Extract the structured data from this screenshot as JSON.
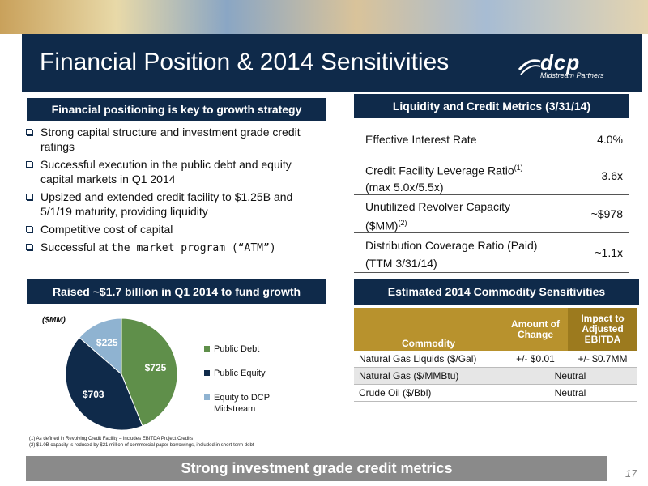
{
  "slide": {
    "title": "Financial Position & 2014 Sensitivities",
    "logo": {
      "mark": "dcp",
      "sub": "Midstream Partners"
    },
    "page_number": "17",
    "banner": "Strong investment grade credit metrics"
  },
  "left_top": {
    "header": "Financial positioning is key to growth strategy",
    "bullets": [
      "Strong capital structure and investment grade credit ratings",
      "Successful execution in the public debt and equity capital markets in Q1 2014",
      "Upsized and extended credit facility to $1.25B and 5/1/19 maturity, providing liquidity",
      "Competitive cost of capital"
    ],
    "bullet_last_prefix": "Successful at ",
    "bullet_last_rest": "the market program (“ATM”)"
  },
  "right_top": {
    "header": "Liquidity and Credit Metrics (3/31/14)",
    "rows": [
      {
        "label": "Effective Interest Rate",
        "value": "4.0%"
      },
      {
        "label_a": "Credit Facility Leverage Ratio",
        "sup": "(1)",
        "label_b": "(max 5.0x/5.5x)",
        "value": "3.6x"
      },
      {
        "label_a": "Unutilized Revolver Capacity",
        "label_b_pre": "($MM)",
        "sup": "(2)",
        "value": "~$978"
      },
      {
        "label_a": "Distribution Coverage Ratio (Paid)",
        "label_b": "(TTM 3/31/14)",
        "value": "~1.1x"
      }
    ]
  },
  "left_bottom": {
    "header": "Raised ~$1.7 billion in Q1 2014 to fund growth",
    "unit_label": "($MM)",
    "footnote_1": "(1) As defined in Revolving Credit Facility – includes EBITDA Project Credits",
    "footnote_2": "(2) $1.0B capacity is reduced by $21 million of commercial paper borrowings, included in short-term debt"
  },
  "chart_data": {
    "type": "pie",
    "title": "",
    "categories": [
      "Public Debt",
      "Public Equity",
      "Equity to DCP Midstream"
    ],
    "values": [
      725,
      703,
      225
    ],
    "labels": [
      "$725",
      "$703",
      "$225"
    ],
    "colors": [
      "#5f8f4a",
      "#0f2a4a",
      "#8fb3d1"
    ],
    "legend_position": "right"
  },
  "right_bottom": {
    "header": "Estimated 2014 Commodity Sensitivities",
    "col_commodity": "Commodity",
    "col_amount": "Amount of Change",
    "col_impact": "Impact to Adjusted EBITDA",
    "rows": [
      {
        "commodity": "Natural Gas Liquids ($/Gal)",
        "amount": "+/- $0.01",
        "impact": "+/- $0.7MM"
      },
      {
        "commodity": "Natural Gas ($/MMBtu)",
        "merged": "Neutral"
      },
      {
        "commodity": "Crude Oil ($/Bbl)",
        "merged": "Neutral"
      }
    ]
  },
  "colors": {
    "navy": "#0f2a4a",
    "gold_header": "#b8922d",
    "gold_dark": "#9c7a1e",
    "banner_gray": "#8a8a8a",
    "row_alt": "#e6e6e6"
  }
}
